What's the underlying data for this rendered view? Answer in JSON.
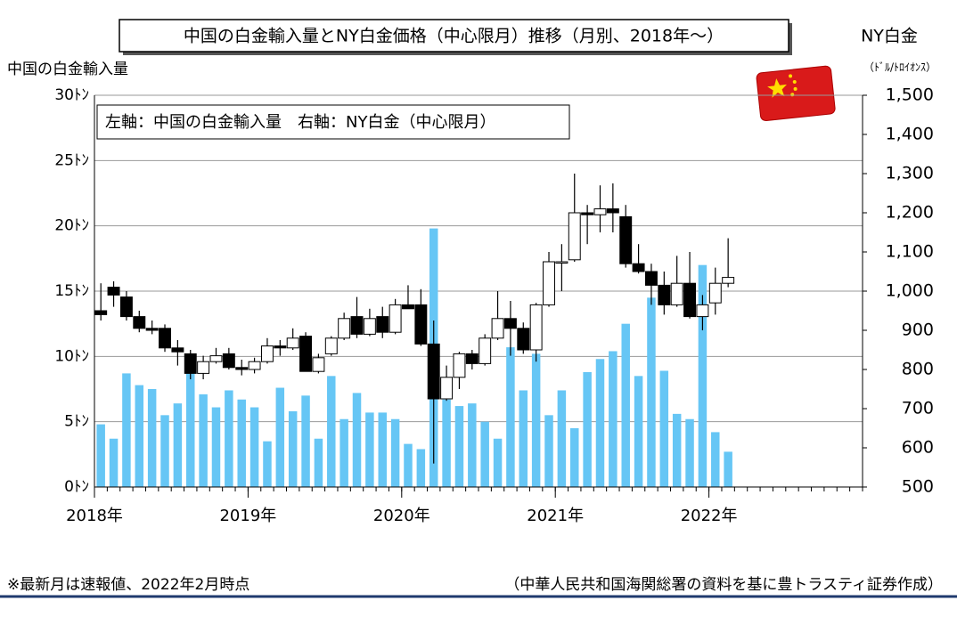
{
  "chart_data": {
    "type": "combo",
    "title": "中国の白金輸入量とNY白金価格（中心限月）推移（月別、2018年～）",
    "ylabel": "中国の白金輸入量",
    "y2label": "NY白金",
    "y2unit": "（ﾄﾞﾙ/ﾄﾛｲｵﾝｽ）",
    "annotation": "左軸：中国の白金輸入量　右軸：NY白金（中心限月）",
    "footnote": "※最新月は速報値、2022年2月時点",
    "source": "（中華人民共和国海関総署の資料を基に豊トラスティ証券作成）",
    "x": [
      "2018-01",
      "2018-02",
      "2018-03",
      "2018-04",
      "2018-05",
      "2018-06",
      "2018-07",
      "2018-08",
      "2018-09",
      "2018-10",
      "2018-11",
      "2018-12",
      "2019-01",
      "2019-02",
      "2019-03",
      "2019-04",
      "2019-05",
      "2019-06",
      "2019-07",
      "2019-08",
      "2019-09",
      "2019-10",
      "2019-11",
      "2019-12",
      "2020-01",
      "2020-02",
      "2020-03",
      "2020-04",
      "2020-05",
      "2020-06",
      "2020-07",
      "2020-08",
      "2020-09",
      "2020-10",
      "2020-11",
      "2020-12",
      "2021-01",
      "2021-02",
      "2021-03",
      "2021-04",
      "2021-05",
      "2021-06",
      "2021-07",
      "2021-08",
      "2021-09",
      "2021-10",
      "2021-11",
      "2021-12",
      "2022-01",
      "2022-02"
    ],
    "xlim": [
      "2018-01",
      "2022-12"
    ],
    "xticks": [
      {
        "value": "2018-01",
        "label": "2018年"
      },
      {
        "value": "2019-01",
        "label": "2019年"
      },
      {
        "value": "2020-01",
        "label": "2020年"
      },
      {
        "value": "2021-01",
        "label": "2021年"
      },
      {
        "value": "2022-01",
        "label": "2022年"
      }
    ],
    "ylim": [
      0,
      30
    ],
    "yticks": [
      {
        "value": 0,
        "label": "0ﾄﾝ"
      },
      {
        "value": 5,
        "label": "5ﾄﾝ"
      },
      {
        "value": 10,
        "label": "10ﾄﾝ"
      },
      {
        "value": 15,
        "label": "15ﾄﾝ"
      },
      {
        "value": 20,
        "label": "20ﾄﾝ"
      },
      {
        "value": 25,
        "label": "25ﾄﾝ"
      },
      {
        "value": 30,
        "label": "30ﾄﾝ"
      }
    ],
    "y2lim": [
      500,
      1500
    ],
    "y2ticks": [
      500,
      600,
      700,
      800,
      900,
      {
        "value": 1000,
        "label": "1,000"
      },
      {
        "value": 1100,
        "label": "1,100"
      },
      {
        "value": 1200,
        "label": "1,200"
      },
      {
        "value": 1300,
        "label": "1,300"
      },
      {
        "value": 1400,
        "label": "1,400"
      },
      {
        "value": 1500,
        "label": "1,500"
      }
    ],
    "grid": true,
    "series": [
      {
        "type": "bar",
        "color": "#66c6f5",
        "values": [
          4.8,
          3.7,
          8.7,
          7.8,
          7.5,
          5.5,
          6.4,
          8.8,
          7.1,
          6.1,
          7.4,
          6.7,
          6.1,
          3.5,
          7.6,
          5.8,
          7.0,
          3.7,
          8.5,
          5.2,
          7.2,
          5.7,
          5.7,
          5.2,
          3.3,
          2.9,
          19.8,
          6.7,
          6.2,
          6.4,
          5.0,
          3.7,
          10.7,
          7.4,
          10.2,
          5.5,
          7.4,
          4.5,
          8.8,
          9.8,
          10.4,
          12.5,
          8.5,
          14.5,
          8.9,
          5.6,
          5.2,
          17.0,
          4.2,
          2.7
        ]
      },
      {
        "type": "candlestick",
        "axis": "y2",
        "up_color": "#ffffff",
        "down_color": "#000000",
        "open": [
          950,
          1010,
          985,
          935,
          905,
          905,
          855,
          840,
          790,
          820,
          840,
          805,
          800,
          820,
          860,
          855,
          885,
          795,
          840,
          880,
          935,
          890,
          935,
          895,
          965,
          965,
          865,
          725,
          780,
          840,
          815,
          880,
          930,
          905,
          850,
          965,
          1075,
          1080,
          1200,
          1195,
          1210,
          1190,
          1070,
          1050,
          1015,
          965,
          1020,
          935,
          970,
          1020
        ],
        "high": [
          1020,
          1025,
          1000,
          950,
          925,
          915,
          875,
          850,
          835,
          855,
          855,
          825,
          830,
          880,
          875,
          905,
          895,
          840,
          885,
          945,
          985,
          955,
          960,
          980,
          1015,
          1005,
          925,
          810,
          845,
          850,
          890,
          1000,
          975,
          920,
          970,
          1100,
          1120,
          1300,
          1220,
          1270,
          1275,
          1220,
          1120,
          1070,
          1050,
          1090,
          1100,
          990,
          1060,
          1135
        ],
        "low": [
          925,
          960,
          925,
          895,
          890,
          845,
          810,
          775,
          775,
          815,
          800,
          785,
          790,
          815,
          835,
          850,
          795,
          790,
          835,
          875,
          880,
          885,
          880,
          890,
          955,
          860,
          560,
          720,
          750,
          800,
          810,
          875,
          835,
          840,
          820,
          960,
          1000,
          1075,
          1120,
          1150,
          1150,
          1060,
          1045,
          965,
          940,
          960,
          930,
          900,
          940,
          1010
        ],
        "close": [
          940,
          990,
          935,
          905,
          900,
          855,
          845,
          790,
          820,
          835,
          805,
          800,
          820,
          860,
          855,
          880,
          795,
          830,
          880,
          930,
          890,
          930,
          895,
          965,
          955,
          865,
          725,
          780,
          840,
          815,
          880,
          930,
          905,
          850,
          965,
          1075,
          1075,
          1200,
          1195,
          1210,
          1200,
          1070,
          1050,
          1015,
          965,
          1020,
          935,
          965,
          1020,
          1035
        ]
      }
    ]
  }
}
